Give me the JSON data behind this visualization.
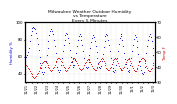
{
  "title": "Milwaukee Weather Outdoor Humidity\nvs Temperature\nEvery 5 Minutes",
  "title_fontsize": 3.2,
  "background_color": "#ffffff",
  "grid_color": "#bbbbbb",
  "humidity_color": "#0000dd",
  "temp_color": "#dd0000",
  "left_label": "Humidity %",
  "right_label": "Temp F",
  "left_label_color": "#0000dd",
  "right_label_color": "#dd0000",
  "ylabel_fontsize": 2.8,
  "ytick_fontsize": 2.8,
  "xtick_fontsize": 2.5,
  "marker_size": 0.6,
  "humidity_data": [
    60,
    62,
    65,
    70,
    78,
    85,
    90,
    93,
    95,
    94,
    92,
    88,
    82,
    75,
    68,
    60,
    52,
    46,
    42,
    40,
    42,
    48,
    55,
    62,
    70,
    78,
    85,
    90,
    92,
    90,
    86,
    80,
    72,
    64,
    55,
    48,
    44,
    42,
    44,
    50,
    58,
    66,
    74,
    80,
    85,
    88,
    86,
    82,
    76,
    68,
    60,
    54,
    50,
    48,
    50,
    56,
    64,
    72,
    79,
    84,
    86,
    84,
    80,
    74,
    66,
    58,
    52,
    48,
    46,
    48,
    54,
    62,
    70,
    77,
    82,
    85,
    83,
    78,
    72,
    65,
    58,
    52,
    48,
    47,
    49,
    55,
    63,
    71,
    78,
    84,
    87,
    85,
    80,
    74,
    66,
    58,
    51,
    46,
    43,
    42,
    44,
    50,
    58,
    67,
    75,
    82,
    86,
    84,
    79,
    72,
    64,
    57,
    51,
    46,
    43,
    42,
    44,
    50,
    58,
    66,
    74,
    81,
    85,
    83,
    78,
    71,
    63,
    55,
    49,
    44,
    41,
    40,
    42,
    48,
    56,
    64,
    72,
    79,
    84,
    86,
    83,
    78,
    70,
    62
  ],
  "temp_data": [
    50,
    49,
    47,
    45,
    43,
    41,
    39,
    37,
    36,
    35,
    36,
    37,
    39,
    41,
    43,
    46,
    48,
    50,
    52,
    54,
    55,
    55,
    54,
    52,
    50,
    48,
    46,
    44,
    43,
    44,
    46,
    48,
    50,
    53,
    55,
    57,
    58,
    58,
    57,
    55,
    53,
    50,
    48,
    46,
    44,
    43,
    44,
    46,
    48,
    50,
    53,
    55,
    57,
    58,
    58,
    57,
    55,
    52,
    50,
    47,
    45,
    44,
    44,
    45,
    47,
    50,
    52,
    54,
    56,
    57,
    57,
    56,
    54,
    51,
    49,
    47,
    45,
    44,
    44,
    46,
    48,
    51,
    53,
    55,
    57,
    58,
    57,
    55,
    52,
    50,
    47,
    45,
    44,
    44,
    46,
    48,
    51,
    54,
    56,
    57,
    58,
    57,
    55,
    52,
    49,
    47,
    45,
    44,
    44,
    46,
    48,
    51,
    54,
    56,
    57,
    58,
    57,
    55,
    52,
    49,
    46,
    44,
    43,
    43,
    45,
    47,
    50,
    53,
    55,
    57,
    58,
    58,
    57,
    55,
    52,
    49,
    46,
    44,
    43,
    43,
    45,
    47,
    50,
    52
  ],
  "x_tick_labels": [
    "11/21",
    "",
    "11/22",
    "",
    "11/23",
    "",
    "11/24",
    "",
    "11/25",
    "",
    "11/26",
    "",
    "11/27",
    "",
    "11/28",
    "",
    "11/29",
    "",
    "11/30",
    "",
    "12/1",
    "",
    "12/2",
    "",
    "12/3"
  ],
  "ylim_left": [
    30,
    100
  ],
  "ylim_right": [
    30,
    70
  ],
  "yticks_left": [
    40,
    60,
    80,
    100
  ],
  "yticks_right": [
    30,
    40,
    50,
    60,
    70
  ]
}
